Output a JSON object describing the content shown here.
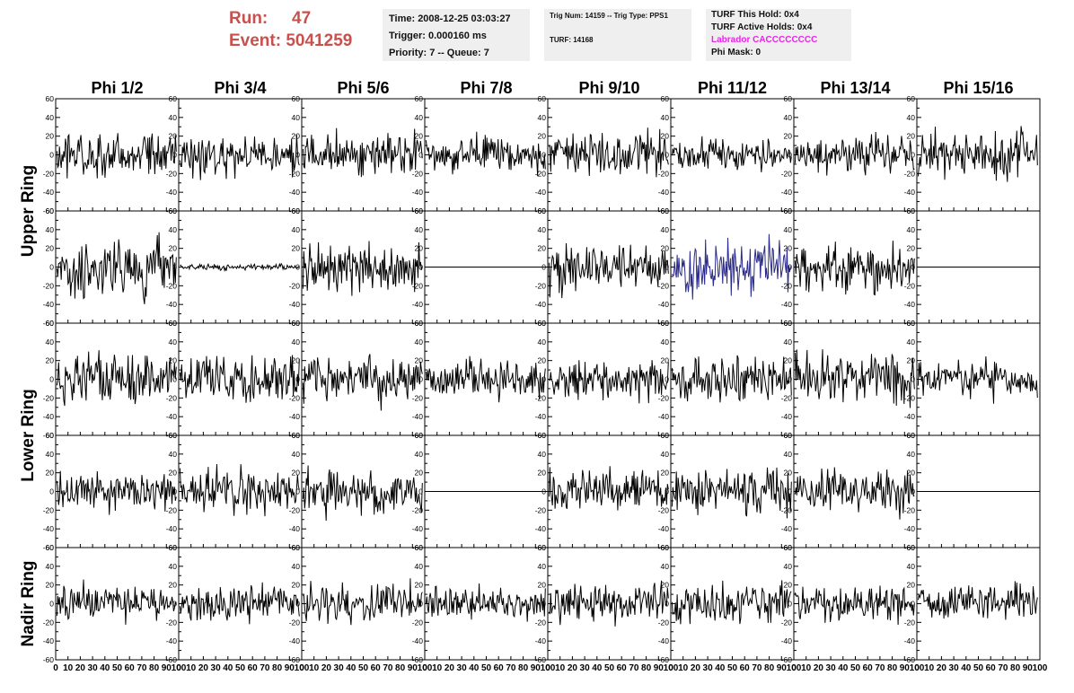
{
  "header": {
    "run_label": "Run:",
    "run_value": "47",
    "event_label": "Event:",
    "event_value": "5041259"
  },
  "info_time": {
    "time": "Time: 2008-12-25 03:03:27",
    "trigger": "Trigger: 0.000160 ms",
    "priority": "Priority: 7 -- Queue: 7"
  },
  "info_trig": {
    "trig": "Trig Num: 14159 -- Trig Type: PPS1",
    "turf": "TURF: 14168"
  },
  "info_turf": {
    "this_hold": "TURF This Hold: 0x4",
    "active_holds": "TURF Active Holds: 0x4",
    "labrador": "Labrador CACCCCCCCC",
    "phi_mask": "Phi Mask: 0"
  },
  "colors": {
    "trace": "#000000",
    "highlight_trace": "#2a2a8a",
    "header_text": "#c8514e",
    "labrador_text": "#ee22ee",
    "info_bg": "#efefef"
  },
  "chart_data": {
    "type": "line",
    "columns": [
      "Phi 1/2",
      "Phi 3/4",
      "Phi 5/6",
      "Phi 7/8",
      "Phi 9/10",
      "Phi 11/12",
      "Phi 13/14",
      "Phi 15/16"
    ],
    "ring_labels": [
      "Upper Ring",
      "Lower Ring",
      "Nadir Ring"
    ],
    "rows": 5,
    "xlim": [
      0,
      100
    ],
    "ylim": [
      -60,
      60
    ],
    "y_ticks": [
      -60,
      -40,
      -20,
      0,
      20,
      40,
      60
    ],
    "x_ticks": [
      0,
      10,
      20,
      30,
      40,
      50,
      60,
      70,
      80,
      90,
      100
    ],
    "panels": [
      {
        "row": 0,
        "col": 0,
        "amplitude": 15
      },
      {
        "row": 0,
        "col": 1,
        "amplitude": 14
      },
      {
        "row": 0,
        "col": 2,
        "amplitude": 14
      },
      {
        "row": 0,
        "col": 3,
        "amplitude": 12
      },
      {
        "row": 0,
        "col": 4,
        "amplitude": 14
      },
      {
        "row": 0,
        "col": 5,
        "amplitude": 10
      },
      {
        "row": 0,
        "col": 6,
        "amplitude": 12
      },
      {
        "row": 0,
        "col": 7,
        "amplitude": 16
      },
      {
        "row": 1,
        "col": 0,
        "amplitude": 20
      },
      {
        "row": 1,
        "col": 1,
        "amplitude": 2
      },
      {
        "row": 1,
        "col": 2,
        "amplitude": 16
      },
      {
        "row": 1,
        "col": 3,
        "amplitude": 0
      },
      {
        "row": 1,
        "col": 4,
        "amplitude": 16
      },
      {
        "row": 1,
        "col": 5,
        "amplitude": 18,
        "highlight": true
      },
      {
        "row": 1,
        "col": 6,
        "amplitude": 15
      },
      {
        "row": 1,
        "col": 7,
        "amplitude": 0
      },
      {
        "row": 2,
        "col": 0,
        "amplitude": 16
      },
      {
        "row": 2,
        "col": 1,
        "amplitude": 16
      },
      {
        "row": 2,
        "col": 2,
        "amplitude": 16
      },
      {
        "row": 2,
        "col": 3,
        "amplitude": 13
      },
      {
        "row": 2,
        "col": 4,
        "amplitude": 13
      },
      {
        "row": 2,
        "col": 5,
        "amplitude": 15
      },
      {
        "row": 2,
        "col": 6,
        "amplitude": 17
      },
      {
        "row": 2,
        "col": 7,
        "amplitude": 12
      },
      {
        "row": 3,
        "col": 0,
        "amplitude": 14
      },
      {
        "row": 3,
        "col": 1,
        "amplitude": 15
      },
      {
        "row": 3,
        "col": 2,
        "amplitude": 14
      },
      {
        "row": 3,
        "col": 3,
        "amplitude": 0
      },
      {
        "row": 3,
        "col": 4,
        "amplitude": 14
      },
      {
        "row": 3,
        "col": 5,
        "amplitude": 15
      },
      {
        "row": 3,
        "col": 6,
        "amplitude": 14
      },
      {
        "row": 3,
        "col": 7,
        "amplitude": 0
      },
      {
        "row": 4,
        "col": 0,
        "amplitude": 12
      },
      {
        "row": 4,
        "col": 1,
        "amplitude": 12
      },
      {
        "row": 4,
        "col": 2,
        "amplitude": 13
      },
      {
        "row": 4,
        "col": 3,
        "amplitude": 11
      },
      {
        "row": 4,
        "col": 4,
        "amplitude": 12
      },
      {
        "row": 4,
        "col": 5,
        "amplitude": 13
      },
      {
        "row": 4,
        "col": 6,
        "amplitude": 12
      },
      {
        "row": 4,
        "col": 7,
        "amplitude": 13
      }
    ]
  }
}
